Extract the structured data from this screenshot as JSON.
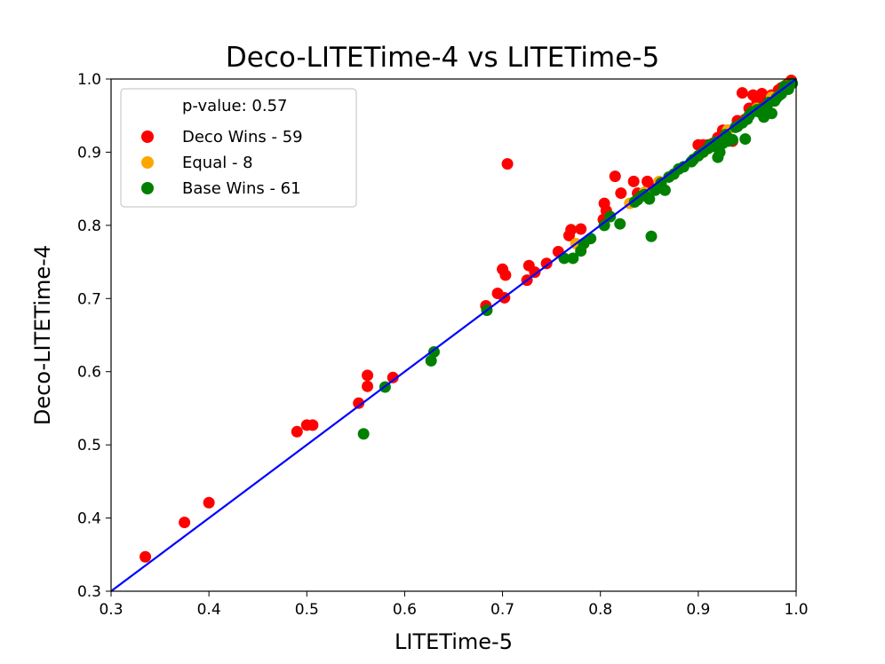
{
  "chart_data": {
    "type": "scatter",
    "title": "Deco-LITETime-4 vs LITETime-5",
    "xlabel": "LITETime-5",
    "ylabel": "Deco-LITETime-4",
    "xlim": [
      0.3,
      1.0
    ],
    "ylim": [
      0.3,
      1.0
    ],
    "xticks": [
      "0.3",
      "0.4",
      "0.5",
      "0.6",
      "0.7",
      "0.8",
      "0.9",
      "1.0"
    ],
    "yticks": [
      "0.3",
      "0.4",
      "0.5",
      "0.6",
      "0.7",
      "0.8",
      "0.9",
      "1.0"
    ],
    "grid": false,
    "legend_position": "top-left",
    "annotation": "p-value: 0.57",
    "diagonal_line": {
      "from": [
        0.3,
        0.3
      ],
      "to": [
        1.0,
        1.0
      ],
      "color": "#0000ff"
    },
    "series": [
      {
        "name": "Deco Wins - 59",
        "color": "#ff0000",
        "points": [
          [
            0.335,
            0.347
          ],
          [
            0.375,
            0.394
          ],
          [
            0.4,
            0.421
          ],
          [
            0.49,
            0.518
          ],
          [
            0.5,
            0.527
          ],
          [
            0.506,
            0.527
          ],
          [
            0.553,
            0.557
          ],
          [
            0.562,
            0.58
          ],
          [
            0.562,
            0.595
          ],
          [
            0.588,
            0.592
          ],
          [
            0.683,
            0.69
          ],
          [
            0.695,
            0.707
          ],
          [
            0.7,
            0.74
          ],
          [
            0.702,
            0.701
          ],
          [
            0.703,
            0.732
          ],
          [
            0.705,
            0.884
          ],
          [
            0.725,
            0.725
          ],
          [
            0.727,
            0.745
          ],
          [
            0.733,
            0.736
          ],
          [
            0.745,
            0.748
          ],
          [
            0.757,
            0.764
          ],
          [
            0.768,
            0.786
          ],
          [
            0.77,
            0.794
          ],
          [
            0.78,
            0.795
          ],
          [
            0.803,
            0.808
          ],
          [
            0.804,
            0.83
          ],
          [
            0.806,
            0.82
          ],
          [
            0.815,
            0.867
          ],
          [
            0.821,
            0.844
          ],
          [
            0.834,
            0.86
          ],
          [
            0.838,
            0.844
          ],
          [
            0.848,
            0.86
          ],
          [
            0.85,
            0.855
          ],
          [
            0.86,
            0.858
          ],
          [
            0.9,
            0.91
          ],
          [
            0.905,
            0.91
          ],
          [
            0.91,
            0.91
          ],
          [
            0.915,
            0.912
          ],
          [
            0.92,
            0.92
          ],
          [
            0.925,
            0.93
          ],
          [
            0.93,
            0.93
          ],
          [
            0.935,
            0.915
          ],
          [
            0.94,
            0.943
          ],
          [
            0.945,
            0.981
          ],
          [
            0.948,
            0.945
          ],
          [
            0.952,
            0.96
          ],
          [
            0.956,
            0.978
          ],
          [
            0.958,
            0.958
          ],
          [
            0.96,
            0.97
          ],
          [
            0.963,
            0.965
          ],
          [
            0.965,
            0.98
          ],
          [
            0.968,
            0.97
          ],
          [
            0.972,
            0.975
          ],
          [
            0.975,
            0.978
          ],
          [
            0.978,
            0.976
          ],
          [
            0.982,
            0.985
          ],
          [
            0.985,
            0.988
          ],
          [
            0.99,
            0.992
          ],
          [
            0.995,
            0.998
          ]
        ]
      },
      {
        "name": "Equal - 8",
        "color": "#ffa500",
        "points": [
          [
            0.775,
            0.775
          ],
          [
            0.83,
            0.83
          ],
          [
            0.845,
            0.845
          ],
          [
            0.86,
            0.86
          ],
          [
            0.93,
            0.93
          ],
          [
            0.96,
            0.96
          ],
          [
            0.975,
            0.975
          ],
          [
            0.99,
            0.99
          ]
        ]
      },
      {
        "name": "Base Wins - 61",
        "color": "#008000",
        "points": [
          [
            0.558,
            0.515
          ],
          [
            0.58,
            0.579
          ],
          [
            0.627,
            0.615
          ],
          [
            0.63,
            0.627
          ],
          [
            0.684,
            0.684
          ],
          [
            0.763,
            0.755
          ],
          [
            0.772,
            0.755
          ],
          [
            0.78,
            0.765
          ],
          [
            0.783,
            0.775
          ],
          [
            0.79,
            0.782
          ],
          [
            0.804,
            0.8
          ],
          [
            0.81,
            0.812
          ],
          [
            0.82,
            0.802
          ],
          [
            0.838,
            0.835
          ],
          [
            0.842,
            0.84
          ],
          [
            0.85,
            0.836
          ],
          [
            0.852,
            0.785
          ],
          [
            0.856,
            0.848
          ],
          [
            0.862,
            0.858
          ],
          [
            0.866,
            0.848
          ],
          [
            0.88,
            0.877
          ],
          [
            0.893,
            0.887
          ],
          [
            0.9,
            0.895
          ],
          [
            0.905,
            0.9
          ],
          [
            0.91,
            0.905
          ],
          [
            0.915,
            0.908
          ],
          [
            0.92,
            0.893
          ],
          [
            0.922,
            0.9
          ],
          [
            0.925,
            0.912
          ],
          [
            0.93,
            0.915
          ],
          [
            0.935,
            0.917
          ],
          [
            0.94,
            0.935
          ],
          [
            0.945,
            0.94
          ],
          [
            0.948,
            0.918
          ],
          [
            0.95,
            0.945
          ],
          [
            0.955,
            0.955
          ],
          [
            0.96,
            0.958
          ],
          [
            0.965,
            0.96
          ],
          [
            0.967,
            0.948
          ],
          [
            0.97,
            0.962
          ],
          [
            0.975,
            0.953
          ],
          [
            0.978,
            0.97
          ],
          [
            0.983,
            0.978
          ],
          [
            0.985,
            0.98
          ],
          [
            0.988,
            0.99
          ],
          [
            0.835,
            0.832
          ],
          [
            0.845,
            0.842
          ],
          [
            0.87,
            0.866
          ],
          [
            0.875,
            0.87
          ],
          [
            0.885,
            0.88
          ],
          [
            0.895,
            0.89
          ],
          [
            0.912,
            0.91
          ],
          [
            0.918,
            0.914
          ],
          [
            0.928,
            0.924
          ],
          [
            0.938,
            0.934
          ],
          [
            0.952,
            0.95
          ],
          [
            0.962,
            0.955
          ],
          [
            0.972,
            0.968
          ],
          [
            0.98,
            0.974
          ],
          [
            0.992,
            0.986
          ],
          [
            0.996,
            0.994
          ]
        ]
      }
    ]
  }
}
